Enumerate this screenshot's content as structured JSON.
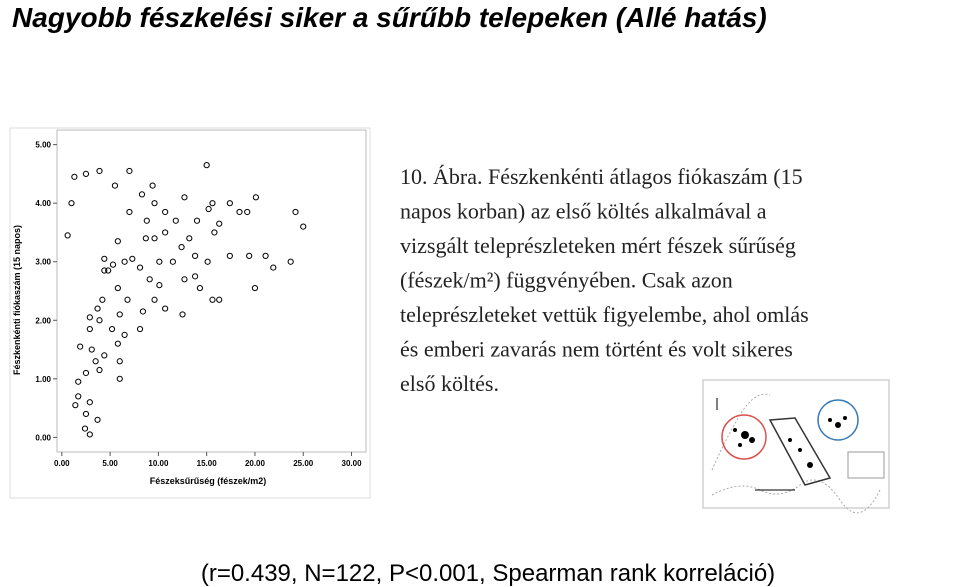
{
  "slide": {
    "title": "Nagyobb fészkelési siker a sűrűbb telepeken (Allé hatás)",
    "caption": [
      "10. Ábra. Fészkenkénti átlagos fiókaszám (15",
      "napos korban) az első költés alkalmával a",
      "vizsgált teleprészleteken mért fészek sűrűség",
      "(fészek/m²) függvényében. Csak azon",
      "teleprészleteket vettük figyelembe, ahol omlás",
      "és emberi zavarás nem történt és volt sikeres",
      "első költés."
    ],
    "footer": "(r=0.439, N=122, P<0.001, Spearman rank korreláció)"
  },
  "chart_data": {
    "type": "scatter",
    "xlabel": "Fészeksűrűség (fészek/m2)",
    "ylabel": "Fészkenkénti fiókaszám (15 napos)",
    "xlim": [
      -0.5,
      31.5
    ],
    "ylim": [
      -0.25,
      5.25
    ],
    "xticks": [
      {
        "value": 0,
        "label": "0.00"
      },
      {
        "value": 5,
        "label": "5.00"
      },
      {
        "value": 10,
        "label": "10.00"
      },
      {
        "value": 15,
        "label": "15.00"
      },
      {
        "value": 20,
        "label": "20.00"
      },
      {
        "value": 25,
        "label": "25.00"
      },
      {
        "value": 30,
        "label": "30.00"
      }
    ],
    "yticks": [
      {
        "value": 0,
        "label": "0.00"
      },
      {
        "value": 1,
        "label": "1.00"
      },
      {
        "value": 2,
        "label": "2.00"
      },
      {
        "value": 3,
        "label": "3.00"
      },
      {
        "value": 4,
        "label": "4.00"
      },
      {
        "value": 5,
        "label": "5.00"
      }
    ],
    "color": "#000000",
    "x": [
      1.3,
      2.5,
      1.0,
      0.6,
      3.9,
      5.5,
      7.0,
      15.0,
      9.4,
      8.3,
      7.0,
      9.6,
      12.7,
      10.7,
      8.8,
      11.8,
      14.0,
      15.2,
      15.6,
      17.4,
      18.4,
      20.1,
      19.2,
      16.3,
      15.8,
      24.2,
      25.0,
      5.8,
      7.3,
      8.7,
      9.6,
      10.7,
      10.1,
      11.5,
      12.4,
      13.2,
      13.8,
      15.1,
      17.4,
      19.4,
      21.1,
      21.9,
      23.7,
      4.4,
      5.3,
      6.5,
      4.4,
      8.1,
      9.1,
      10.1,
      12.7,
      13.8,
      14.3,
      16.3,
      15.6,
      20.0,
      5.8,
      6.8,
      4.2,
      3.7,
      6.0,
      8.4,
      9.6,
      10.7,
      12.5,
      2.9,
      3.9,
      2.9,
      5.2,
      6.5,
      8.1,
      1.9,
      3.1,
      4.4,
      5.8,
      3.5,
      6.0,
      2.5,
      3.9,
      1.7,
      6.0,
      1.7,
      1.4,
      2.9,
      2.5,
      3.7,
      2.4,
      2.9,
      4.8
    ],
    "values": [
      4.45,
      4.5,
      4.0,
      3.45,
      4.55,
      4.3,
      4.55,
      4.65,
      4.3,
      4.15,
      3.85,
      4.0,
      4.1,
      3.85,
      3.7,
      3.7,
      3.7,
      3.9,
      4.0,
      4.0,
      3.85,
      4.1,
      3.85,
      3.65,
      3.5,
      3.85,
      3.6,
      3.35,
      3.05,
      3.4,
      3.4,
      3.5,
      3.0,
      3.0,
      3.25,
      3.4,
      3.1,
      3.0,
      3.1,
      3.1,
      3.1,
      2.9,
      3.0,
      3.05,
      2.95,
      3.0,
      2.85,
      2.9,
      2.7,
      2.6,
      2.7,
      2.75,
      2.55,
      2.35,
      2.35,
      2.55,
      2.55,
      2.35,
      2.35,
      2.2,
      2.1,
      2.15,
      2.35,
      2.2,
      2.1,
      2.05,
      2.0,
      1.85,
      1.85,
      1.75,
      1.85,
      1.55,
      1.5,
      1.4,
      1.6,
      1.3,
      1.3,
      1.1,
      1.15,
      0.95,
      1.0,
      0.7,
      0.55,
      0.6,
      0.4,
      0.3,
      0.15,
      0.05,
      2.85
    ]
  }
}
